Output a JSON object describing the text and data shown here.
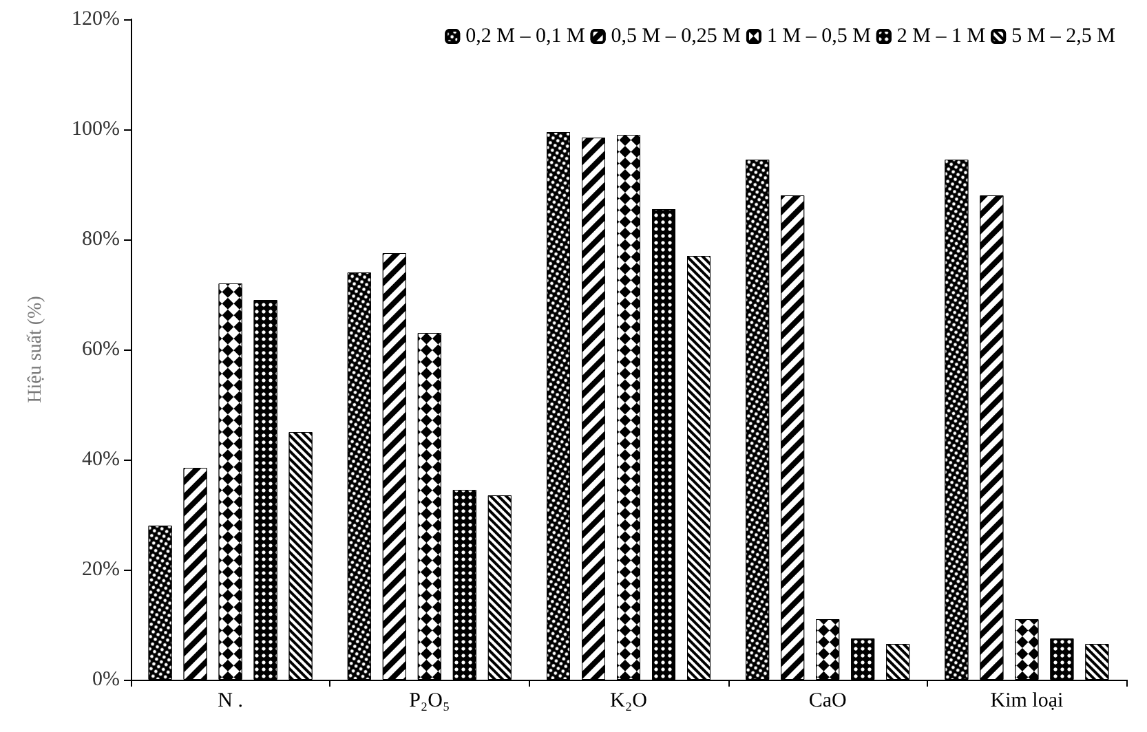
{
  "chart_data": {
    "type": "bar",
    "ylabel": "Hiệu suất (%)",
    "categories": [
      "N .",
      "P₂O₅",
      "K₂O",
      "CaO",
      "Kim loại"
    ],
    "series": [
      {
        "name": "0,2 M – 0,1 M",
        "color": "#000000",
        "values": [
          28,
          74,
          99.5,
          94.5,
          94.5
        ]
      },
      {
        "name": "0,5 M – 0,25 M",
        "color": "#000000",
        "values": [
          38.5,
          77.5,
          98.5,
          88,
          88
        ]
      },
      {
        "name": "1 M – 0,5 M",
        "color": "#000000",
        "values": [
          72,
          63,
          99,
          11,
          11
        ]
      },
      {
        "name": "2 M – 1 M",
        "color": "#000000",
        "values": [
          69,
          34.5,
          85.5,
          7.5,
          7.5
        ]
      },
      {
        "name": "5 M – 2,5 M",
        "color": "#000000",
        "values": [
          45,
          33.5,
          77,
          6.5,
          6.5
        ]
      }
    ],
    "ylim": [
      0,
      120
    ],
    "yticks": [
      {
        "value": 0,
        "label": "0%"
      },
      {
        "value": 20,
        "label": "20%"
      },
      {
        "value": 40,
        "label": "40%"
      },
      {
        "value": 60,
        "label": "60%"
      },
      {
        "value": 80,
        "label": "80%"
      },
      {
        "value": 100,
        "label": "100%"
      },
      {
        "value": 120,
        "label": "120%"
      }
    ],
    "grid": false,
    "legend": "top right"
  }
}
